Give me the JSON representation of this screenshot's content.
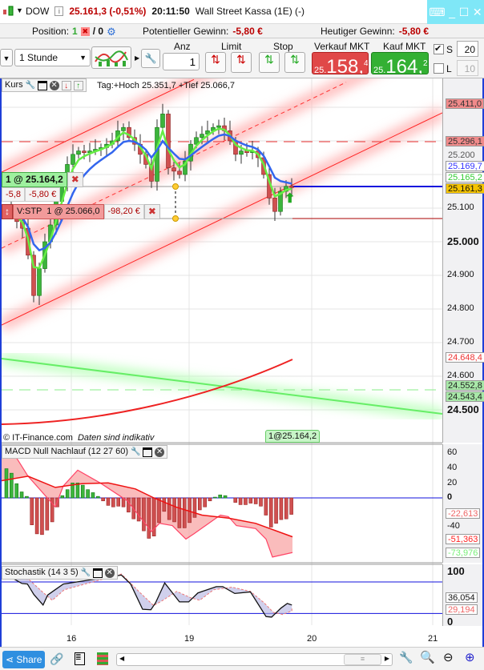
{
  "header": {
    "symbol": "DOW",
    "price_change": "25.161,3 (-0,51%)",
    "time": "20:11:50",
    "instrument": "Wall Street Kassa (1E) (-)"
  },
  "position_bar": {
    "position_label": "Position:",
    "position_value": "1",
    "orders": "/ 0",
    "pot_gain_label": "Potentieller Gewinn:",
    "pot_gain_value": "-5,80 €",
    "today_gain_label": "Heutiger Gewinn:",
    "today_gain_value": "-5,80 €"
  },
  "toolbar": {
    "timeframe": "1 Stunde",
    "qty_label": "Anz",
    "qty_value": "1",
    "limit_label": "Limit",
    "stop_label": "Stop",
    "sell_label": "Verkauf MKT",
    "sell_prefix": "25.",
    "sell_main": "158,",
    "sell_sup": "4",
    "buy_label": "Kauf MKT",
    "buy_prefix": "25.",
    "buy_main": "164,",
    "buy_sup": "2",
    "s_label": "S",
    "s_value": "20",
    "l_label": "L",
    "l_value": "10",
    "s_checked": true,
    "l_checked": false
  },
  "main_chart": {
    "legend": "Kurs",
    "info": "Tag:+Hoch 25.351,7 +Tief 25.066,7",
    "position_tag": "1 @ 25.164,2",
    "pl_points": "-5,8",
    "pl_money": "-5,80 €",
    "stop_tag": "V:STP  1 @ 25.066,0",
    "stop_pl": "-98,20 €",
    "copyright": "© IT-Finance.com",
    "disclaimer": "Daten sind indikativ",
    "entry_marker": "1@25.164,2",
    "axis_ticks": [
      "25.100",
      "25.000",
      "24.900",
      "24.800",
      "24.700",
      "24.600",
      "24.500"
    ],
    "price_tags": [
      {
        "text": "25.411,0",
        "bg": "#f08a8a"
      },
      {
        "text": "25.296,1",
        "bg": "#f08a8a"
      },
      {
        "text": "25.200",
        "bg": "#f1f1f3"
      },
      {
        "text": "25.169,7",
        "bg": "#ffffff"
      },
      {
        "text": "25.165,2",
        "bg": "#ffffff"
      },
      {
        "text": "25.161,3",
        "bg": "#f5c400"
      },
      {
        "text": "24.648,4",
        "bg": "#ffffff"
      },
      {
        "text": "24.552,8",
        "bg": "#a8e8a8"
      },
      {
        "text": "24.543,4",
        "bg": "#a8e8a8"
      }
    ]
  },
  "macd": {
    "legend": "MACD Null Nachlauf (12 27 60)",
    "axis_ticks": [
      "60",
      "40",
      "20",
      "0",
      "-40"
    ],
    "tags": [
      "-22,613",
      "-51,363",
      "-73,976"
    ]
  },
  "stoch": {
    "legend": "Stochastik (14 3 5)",
    "axis_ticks": [
      "100",
      "0"
    ],
    "tags": [
      "36,054",
      "29,194"
    ]
  },
  "x_labels": [
    "16",
    "19",
    "20",
    "21"
  ],
  "bottom": {
    "share": "Share"
  },
  "colors": {
    "sell": "#e04848",
    "buy": "#33b033",
    "up": "#3cb43c",
    "down": "#d05050",
    "blue": "#1a1aff"
  },
  "chart_data": {
    "type": "candlestick",
    "closes": [
      25090,
      25060,
      25040,
      24960,
      24840,
      24920,
      25000,
      25050,
      25120,
      25170,
      25230,
      25260,
      25270,
      25265,
      25270,
      25275,
      25280,
      25290,
      25300,
      25330,
      25340,
      25310,
      25290,
      25260,
      25230,
      25180,
      25340,
      25380,
      25220,
      25210,
      25200,
      25240,
      25290,
      25310,
      25320,
      25330,
      25340,
      25345,
      25330,
      25300,
      25260,
      25270,
      25265,
      25270,
      25250,
      25200,
      25130,
      25090,
      25150,
      25165,
      25161
    ],
    "macd_histogram": [
      39,
      33,
      19,
      8,
      2,
      -36,
      -48,
      -49,
      -43,
      -32,
      -12,
      3,
      11,
      20,
      20,
      17,
      11,
      7,
      2,
      -4,
      -10,
      -12,
      -11,
      -12,
      -19,
      -28,
      -31,
      -44,
      -54,
      -51,
      -33,
      -18,
      -29,
      -32,
      -40,
      -40,
      -33,
      -26,
      -16,
      -12,
      -4,
      1,
      4,
      3,
      0,
      -6,
      -9,
      -9,
      -7,
      -8,
      -11,
      -23,
      -39,
      -34,
      -29,
      -28,
      -22
    ],
    "stoch_k": [
      86,
      77,
      76,
      56,
      36,
      55,
      65,
      76,
      93,
      76,
      28,
      27,
      40,
      78,
      42,
      42,
      59,
      71,
      71,
      58,
      61,
      14,
      13,
      30,
      39,
      36
    ],
    "stoch_d": [
      90,
      84,
      60,
      45,
      65,
      95,
      60,
      35,
      45,
      62,
      50,
      45,
      65,
      70,
      62,
      40,
      22,
      18,
      25,
      29
    ]
  }
}
